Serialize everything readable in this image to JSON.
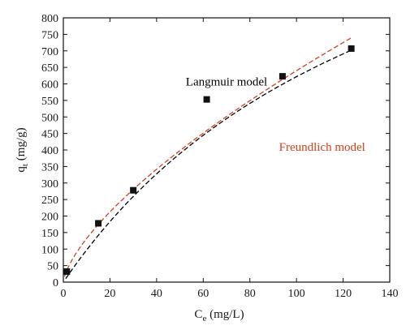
{
  "chart_data": {
    "type": "scatter",
    "xlabel": "C",
    "xlabel_sub": "e",
    "xlabel_unit": " (mg/L)",
    "ylabel": "q",
    "ylabel_sub": "t",
    "ylabel_unit": " (mg/g)",
    "xlim": [
      0,
      140
    ],
    "ylim": [
      0,
      800
    ],
    "xticks": [
      0,
      20,
      40,
      60,
      80,
      100,
      120,
      140
    ],
    "yticks": [
      0,
      50,
      100,
      150,
      200,
      250,
      300,
      350,
      400,
      450,
      500,
      550,
      600,
      650,
      700,
      750,
      800
    ],
    "grid": false,
    "series": [
      {
        "kind": "points",
        "marker": "square",
        "color": "#111111",
        "x": [
          1.5,
          15,
          30,
          61.5,
          94,
          123.5
        ],
        "y": [
          32,
          178,
          278,
          553,
          623,
          707
        ]
      },
      {
        "kind": "fit-line",
        "style": "dashed",
        "color": "#000000",
        "model": "langmuir",
        "qmax": 1550,
        "KL": 0.0067,
        "x_range": [
          1,
          124
        ]
      },
      {
        "kind": "fit-line",
        "style": "dashed",
        "color": "#d2401c",
        "model": "freundlich",
        "KF": 27.3,
        "n_inv": 0.685,
        "x_range": [
          0.5,
          124
        ]
      }
    ],
    "annotations": [
      {
        "text": "Langmuir model",
        "x": 70,
        "y": 595,
        "color": "#000000"
      },
      {
        "text": "Freundlich model",
        "x": 111,
        "y": 398,
        "color": "#d2401c"
      }
    ]
  }
}
